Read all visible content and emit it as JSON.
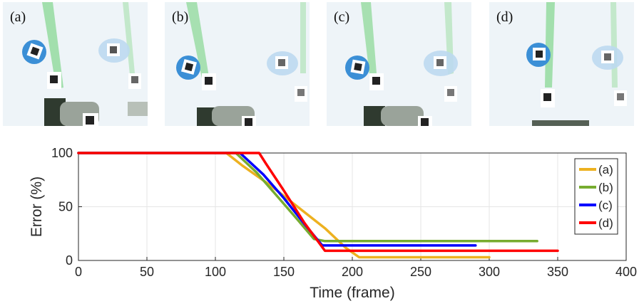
{
  "panels": [
    {
      "label": "(a)"
    },
    {
      "label": "(b)"
    },
    {
      "label": "(c)"
    },
    {
      "label": "(d)"
    }
  ],
  "chart_data": {
    "type": "line",
    "xlabel": "Time (frame)",
    "ylabel": "Error (%)",
    "xlim": [
      0,
      400
    ],
    "ylim": [
      0,
      100
    ],
    "xticks": [
      0,
      50,
      100,
      150,
      200,
      250,
      300,
      350,
      400
    ],
    "yticks": [
      0,
      50,
      100
    ],
    "grid": true,
    "legend_position": "top-right",
    "series": [
      {
        "name": "(a)",
        "color": "#EDB120",
        "x": [
          0,
          108,
          120,
          140,
          160,
          180,
          195,
          205,
          300
        ],
        "y": [
          100,
          100,
          88,
          70,
          50,
          30,
          12,
          3,
          3
        ]
      },
      {
        "name": "(b)",
        "color": "#77AC30",
        "x": [
          0,
          115,
          130,
          145,
          160,
          172,
          180,
          335
        ],
        "y": [
          100,
          100,
          82,
          60,
          38,
          20,
          18,
          18
        ]
      },
      {
        "name": "(c)",
        "color": "#0000FF",
        "x": [
          0,
          118,
          135,
          150,
          165,
          178,
          290
        ],
        "y": [
          100,
          100,
          80,
          58,
          34,
          14,
          14
        ]
      },
      {
        "name": "(d)",
        "color": "#FF0000",
        "x": [
          0,
          132,
          137,
          150,
          165,
          180,
          350
        ],
        "y": [
          100,
          100,
          90,
          65,
          35,
          9,
          9
        ]
      }
    ]
  }
}
